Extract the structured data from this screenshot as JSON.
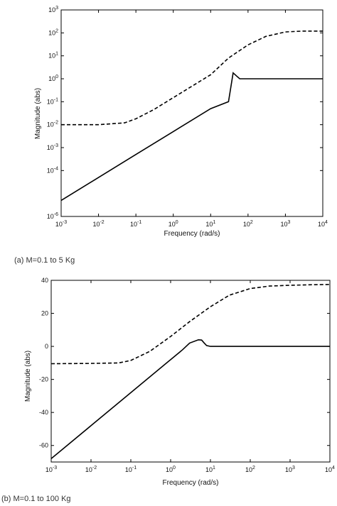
{
  "captions": {
    "a": "(a) M=0.1 to 5 Kg",
    "b": "(b) M=0.1 to 100 Kg"
  },
  "chart_data": [
    {
      "type": "line",
      "xscale": "log",
      "yscale": "log",
      "xlabel": "Frequency (rad/s)",
      "ylabel": "Magnitude (abs)",
      "xlim": [
        0.001,
        10000
      ],
      "ylim": [
        1e-06,
        1000
      ],
      "grid": false,
      "x_ticks": [
        "10^-3",
        "10^-2",
        "10^-1",
        "10^0",
        "10^1",
        "10^2",
        "10^3",
        "10^4"
      ],
      "y_ticks": [
        "10^-6",
        "10^-4",
        "10^-3",
        "10^-2",
        "10^-1",
        "10^0",
        "10^1",
        "10^2",
        "10^3"
      ],
      "series": [
        {
          "style": "dashed",
          "x": [
            0.001,
            0.01,
            0.05,
            0.1,
            0.3,
            1,
            3,
            10,
            30,
            100,
            300,
            1000,
            3000,
            10000
          ],
          "y": [
            0.01,
            0.01,
            0.012,
            0.018,
            0.045,
            0.15,
            0.45,
            1.5,
            8,
            30,
            70,
            110,
            120,
            120
          ]
        },
        {
          "style": "solid",
          "x": [
            0.001,
            0.01,
            0.1,
            1,
            10,
            30,
            40,
            50,
            60,
            80,
            100,
            1000,
            10000
          ],
          "y": [
            5e-06,
            5e-05,
            0.0005,
            0.005,
            0.05,
            0.1,
            1.8,
            1.3,
            1.0,
            1.0,
            1.0,
            1.0,
            1.0
          ]
        }
      ]
    },
    {
      "type": "line",
      "xscale": "log",
      "xlabel": "Frequency (rad/s)",
      "ylabel": "Magnitude (abs)",
      "xlim": [
        0.001,
        10000
      ],
      "ylim": [
        -70,
        40
      ],
      "grid": false,
      "x_ticks": [
        "10^-3",
        "10^-2",
        "10^-1",
        "10^0",
        "10^1",
        "10^2",
        "10^3",
        "10^4"
      ],
      "y_ticks": [
        "-60",
        "-40",
        "-20",
        "0",
        "20",
        "40"
      ],
      "series": [
        {
          "style": "dashed",
          "x": [
            0.001,
            0.01,
            0.05,
            0.1,
            0.3,
            1,
            3,
            10,
            30,
            100,
            300,
            1000,
            3000,
            10000
          ],
          "y": [
            -10.5,
            -10.3,
            -10,
            -8.5,
            -3,
            6,
            15,
            24,
            31,
            35,
            36.5,
            37,
            37.3,
            37.5
          ]
        },
        {
          "style": "solid",
          "x": [
            0.001,
            0.01,
            0.1,
            1,
            2,
            3,
            5,
            6,
            7,
            8,
            10,
            100,
            10000
          ],
          "y": [
            -68,
            -48,
            -28,
            -8,
            -2,
            2,
            4,
            3.8,
            2,
            0.5,
            0,
            0,
            0
          ]
        }
      ]
    }
  ]
}
